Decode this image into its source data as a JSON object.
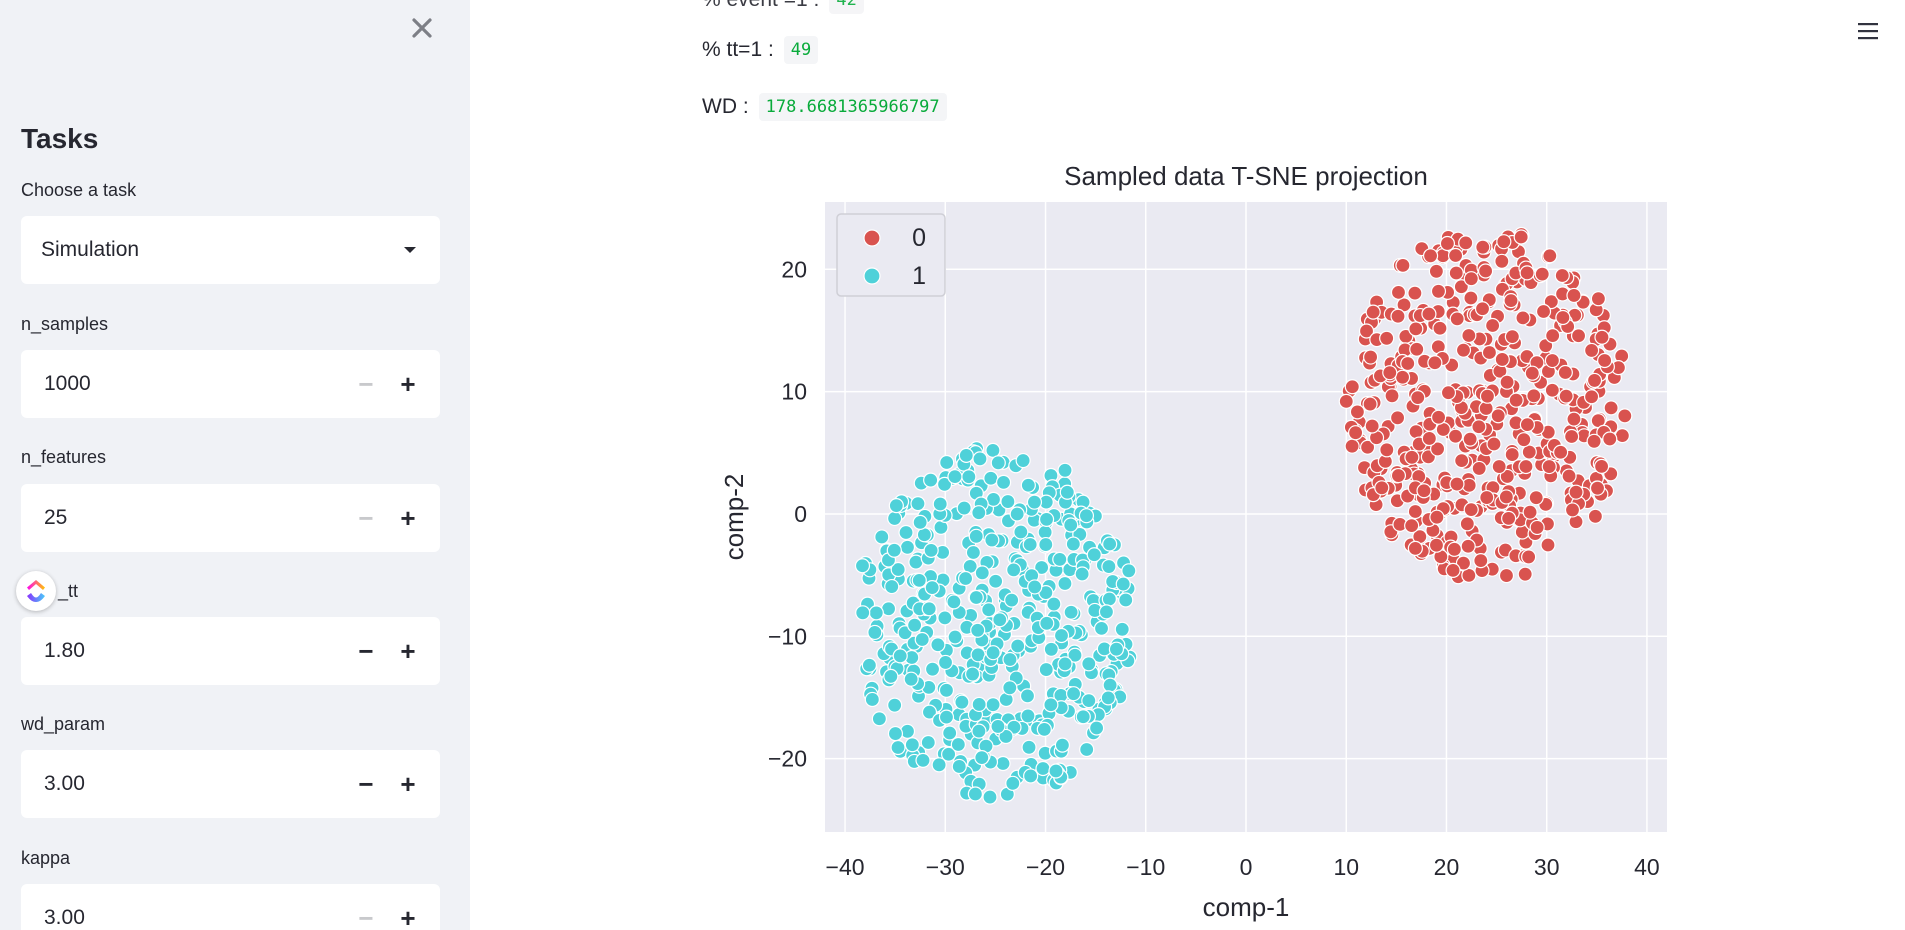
{
  "sidebar": {
    "title": "Tasks",
    "task_label": "Choose a task",
    "task_value": "Simulation",
    "fields": [
      {
        "label": "n_samples",
        "value": "1000"
      },
      {
        "label": "n_features",
        "value": "25"
      },
      {
        "label": "_tt",
        "value": "1.80"
      },
      {
        "label": "wd_param",
        "value": "3.00"
      },
      {
        "label": "kappa",
        "value": "3.00"
      }
    ],
    "minus_symbol": "−",
    "plus_symbol": "+"
  },
  "main": {
    "metrics": [
      {
        "label": "% tt=1 :",
        "value": "49"
      },
      {
        "label": "WD :",
        "value": "178.6681365966797"
      }
    ]
  },
  "icons": [
    "close-icon",
    "menu-icon",
    "clickup-icon"
  ],
  "colors": {
    "series_0": "#d9534f",
    "series_1": "#4fd1d9",
    "plot_bg": "#eaeaf2",
    "metric_code": "#09ab3b"
  },
  "chart_data": {
    "type": "scatter",
    "title": "Sampled data T-SNE projection",
    "xlabel": "comp-1",
    "ylabel": "comp-2",
    "xlim": [
      -42,
      42
    ],
    "ylim": [
      -26,
      25.5
    ],
    "xticks": [
      -40,
      -30,
      -20,
      -10,
      0,
      10,
      20,
      30,
      40
    ],
    "yticks": [
      -20,
      -10,
      0,
      10,
      20
    ],
    "grid": true,
    "legend_position": "top-left",
    "series": [
      {
        "name": "0",
        "color": "#d9534f",
        "cluster_center": [
          24,
          9
        ],
        "cluster_radius": 14.5,
        "n_points": 510
      },
      {
        "name": "1",
        "color": "#4fd1d9",
        "cluster_center": [
          -25,
          -9
        ],
        "cluster_radius": 14.5,
        "n_points": 490
      }
    ]
  }
}
